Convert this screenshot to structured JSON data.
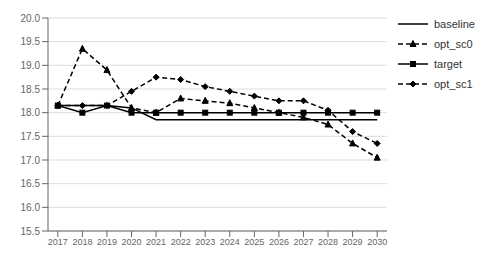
{
  "chart_data": {
    "type": "line",
    "x": [
      2017,
      2018,
      2019,
      2020,
      2021,
      2022,
      2023,
      2024,
      2025,
      2026,
      2027,
      2028,
      2029,
      2030
    ],
    "series": [
      {
        "name": "baseline",
        "color": "#000000",
        "marker": "none",
        "line_style": "solid",
        "values": [
          18.15,
          18.15,
          18.15,
          18.1,
          17.85,
          17.85,
          17.85,
          17.85,
          17.85,
          17.85,
          17.85,
          17.85,
          17.85,
          17.85
        ]
      },
      {
        "name": "opt_sc0",
        "color": "#000000",
        "marker": "triangle",
        "line_style": "dashed",
        "values": [
          18.15,
          19.35,
          18.9,
          18.1,
          18.0,
          18.3,
          18.25,
          18.2,
          18.1,
          18.0,
          17.9,
          17.75,
          17.35,
          17.05
        ]
      },
      {
        "name": "target",
        "color": "#000000",
        "marker": "square",
        "line_style": "solid",
        "values": [
          18.15,
          18.0,
          18.15,
          18.0,
          18.0,
          18.0,
          18.0,
          18.0,
          18.0,
          18.0,
          18.0,
          18.0,
          18.0,
          18.0
        ]
      },
      {
        "name": "opt_sc1",
        "color": "#000000",
        "marker": "diamond",
        "line_style": "dashed",
        "values": [
          18.15,
          18.15,
          18.15,
          18.45,
          18.75,
          18.7,
          18.55,
          18.45,
          18.35,
          18.25,
          18.25,
          18.05,
          17.6,
          17.35
        ]
      }
    ],
    "xlim": [
      2016.6,
      2030.4
    ],
    "xticks": [
      2017,
      2018,
      2019,
      2020,
      2021,
      2022,
      2023,
      2024,
      2025,
      2026,
      2027,
      2028,
      2029,
      2030
    ],
    "ylim": [
      15.5,
      20.0
    ],
    "yticks": [
      15.5,
      {
        "value": 16.0,
        "label": "16.0"
      },
      16.5,
      {
        "value": 17.0,
        "label": "17.0"
      },
      17.5,
      {
        "value": 18.0,
        "label": "18.0"
      },
      18.5,
      {
        "value": 19.0,
        "label": "19.0"
      },
      19.5,
      {
        "value": 20.0,
        "label": "20.0"
      }
    ],
    "grid": "y",
    "legend": "right"
  }
}
